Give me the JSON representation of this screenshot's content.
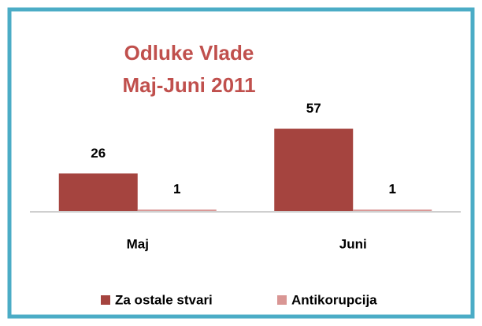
{
  "chart_data": {
    "type": "bar",
    "title": [
      "Odluke Vlade",
      "Maj-Juni 2011"
    ],
    "categories": [
      "Maj",
      "Juni"
    ],
    "series": [
      {
        "name": "Za ostale stvari",
        "color": "#a5443f",
        "values": [
          26,
          57
        ]
      },
      {
        "name": "Antikorupcija",
        "color": "#d99694",
        "values": [
          1,
          1
        ]
      }
    ],
    "ylim": [
      0,
      60
    ],
    "legend": "bottom",
    "title_color": "#c0504d"
  }
}
